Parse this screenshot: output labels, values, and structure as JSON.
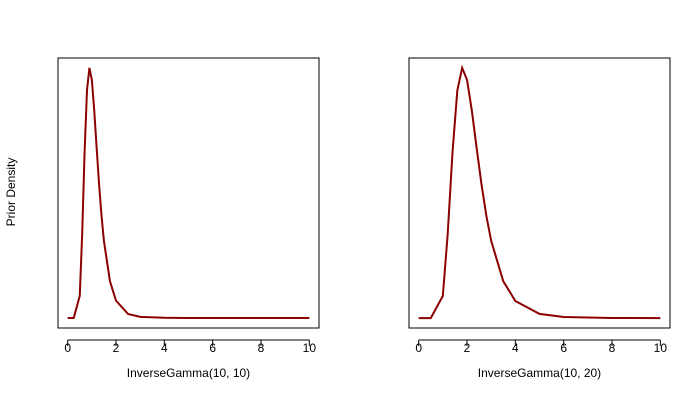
{
  "chart_data": [
    {
      "type": "line",
      "xlabel": "InverseGamma(10, 10)",
      "ylabel": "Prior Density",
      "x": [
        0,
        0.25,
        0.5,
        0.6,
        0.7,
        0.8,
        0.9,
        1,
        1.1,
        1.2,
        1.3,
        1.4,
        1.5,
        1.75,
        2,
        2.5,
        3,
        4,
        5,
        6,
        8,
        10
      ],
      "series": [
        {
          "color": "#8b0000",
          "values": [
            0,
            0,
            0.116,
            0.439,
            0.87,
            1.196,
            1.313,
            1.251,
            1.089,
            0.891,
            0.702,
            0.538,
            0.405,
            0.193,
            0.091,
            0.021,
            0.006,
            0.001,
            0,
            0,
            0,
            0
          ]
        }
      ],
      "xlim": [
        -0.4,
        10.4
      ],
      "xticks": [
        0,
        2,
        4,
        6,
        8,
        10
      ],
      "ylim": [
        -0.0525,
        1.365
      ]
    },
    {
      "type": "line",
      "xlabel": "InverseGamma(10, 20)",
      "x": [
        0,
        0.5,
        1,
        1.2,
        1.4,
        1.6,
        1.8,
        2,
        2.2,
        2.4,
        2.6,
        2.8,
        3,
        3.5,
        4,
        5,
        6,
        8,
        10
      ],
      "series": [
        {
          "color": "#8b0000",
          "values": [
            0,
            0,
            0.058,
            0.22,
            0.435,
            0.598,
            0.657,
            0.626,
            0.545,
            0.446,
            0.351,
            0.269,
            0.203,
            0.097,
            0.045,
            0.011,
            0.003,
            0.0003,
            0
          ]
        }
      ],
      "xlim": [
        -0.4,
        10.4
      ],
      "xticks": [
        0,
        2,
        4,
        6,
        8,
        10
      ],
      "ylim": [
        -0.026,
        0.683
      ]
    }
  ]
}
